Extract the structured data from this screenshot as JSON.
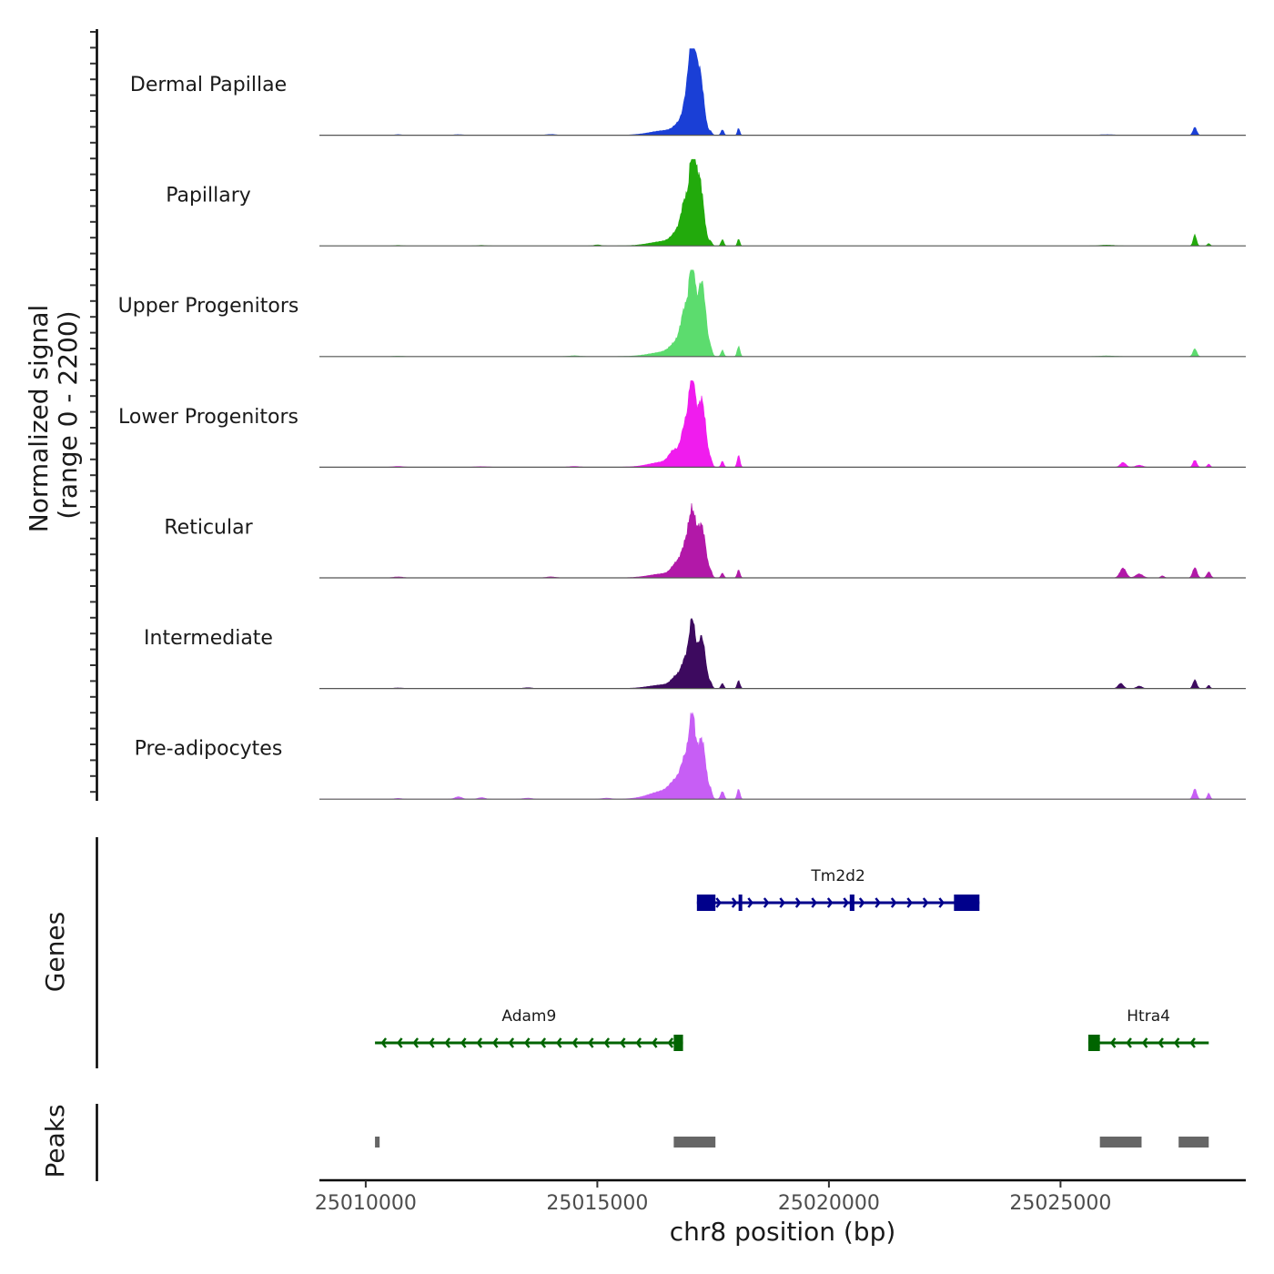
{
  "chart_data": {
    "type": "area",
    "chromosome": "chr8",
    "xlabel": "chr8 position (bp)",
    "xlim": [
      25009000,
      25029000
    ],
    "x_ticks": [
      25010000,
      25015000,
      25020000,
      25025000
    ],
    "x_tick_labels": [
      "25010000",
      "25015000",
      "25020000",
      "25025000"
    ],
    "ylabel_line1": "Normalized signal",
    "ylabel_line2": "(range 0 - 2200)",
    "ylim": [
      0,
      2200
    ],
    "tracks": [
      {
        "name": "Dermal Papillae",
        "color": "#1a3fd6",
        "peaks": [
          [
            25016500,
            120,
            700
          ],
          [
            25016800,
            250,
            250
          ],
          [
            25017050,
            1900,
            120
          ],
          [
            25017200,
            1650,
            180
          ],
          [
            25016950,
            900,
            160
          ],
          [
            25017700,
            140,
            60
          ],
          [
            25018050,
            180,
            50
          ],
          [
            25017450,
            70,
            60
          ],
          [
            25027900,
            200,
            80
          ],
          [
            25010700,
            15,
            150
          ],
          [
            25012000,
            15,
            200
          ],
          [
            25014000,
            20,
            200
          ],
          [
            25026000,
            15,
            300
          ]
        ]
      },
      {
        "name": "Papillary",
        "color": "#22aa0c",
        "peaks": [
          [
            25016500,
            120,
            700
          ],
          [
            25016750,
            300,
            250
          ],
          [
            25017050,
            1900,
            120
          ],
          [
            25017200,
            1700,
            180
          ],
          [
            25016900,
            950,
            160
          ],
          [
            25017700,
            160,
            60
          ],
          [
            25018050,
            180,
            50
          ],
          [
            25017450,
            90,
            60
          ],
          [
            25027900,
            280,
            70
          ],
          [
            25028200,
            60,
            60
          ],
          [
            25010700,
            12,
            150
          ],
          [
            25012500,
            12,
            200
          ],
          [
            25015000,
            25,
            150
          ],
          [
            25026000,
            20,
            300
          ]
        ]
      },
      {
        "name": "Upper Progenitors",
        "color": "#5cdc6e",
        "peaks": [
          [
            25016500,
            120,
            700
          ],
          [
            25016700,
            250,
            250
          ],
          [
            25017050,
            2100,
            120
          ],
          [
            25017250,
            1900,
            180
          ],
          [
            25016900,
            1100,
            180
          ],
          [
            25017700,
            160,
            60
          ],
          [
            25018050,
            260,
            60
          ],
          [
            25017450,
            120,
            60
          ],
          [
            25027900,
            200,
            80
          ],
          [
            25010700,
            10,
            150
          ],
          [
            25014500,
            20,
            200
          ],
          [
            25026000,
            15,
            300
          ]
        ]
      },
      {
        "name": "Lower Progenitors",
        "color": "#f01cee",
        "peaks": [
          [
            25016500,
            140,
            700
          ],
          [
            25016650,
            300,
            200
          ],
          [
            25017050,
            2000,
            130
          ],
          [
            25017250,
            1700,
            180
          ],
          [
            25016900,
            1000,
            180
          ],
          [
            25017700,
            150,
            60
          ],
          [
            25018050,
            300,
            60
          ],
          [
            25017450,
            110,
            60
          ],
          [
            25026350,
            120,
            120
          ],
          [
            25026700,
            50,
            150
          ],
          [
            25027900,
            180,
            80
          ],
          [
            25028200,
            80,
            60
          ],
          [
            25010700,
            20,
            200
          ],
          [
            25012500,
            15,
            250
          ],
          [
            25014500,
            20,
            200
          ]
        ]
      },
      {
        "name": "Reticular",
        "color": "#b218a8",
        "peaks": [
          [
            25016500,
            110,
            700
          ],
          [
            25016700,
            260,
            200
          ],
          [
            25017050,
            1450,
            150
          ],
          [
            25017250,
            1300,
            180
          ],
          [
            25016900,
            700,
            180
          ],
          [
            25017700,
            120,
            60
          ],
          [
            25018050,
            200,
            60
          ],
          [
            25017450,
            100,
            60
          ],
          [
            25026350,
            250,
            130
          ],
          [
            25026700,
            100,
            150
          ],
          [
            25027200,
            50,
            80
          ],
          [
            25027900,
            260,
            90
          ],
          [
            25028200,
            150,
            80
          ],
          [
            25010700,
            25,
            200
          ],
          [
            25014000,
            25,
            200
          ]
        ]
      },
      {
        "name": "Intermediate",
        "color": "#3d0a5f",
        "peaks": [
          [
            25016500,
            100,
            700
          ],
          [
            25016700,
            220,
            200
          ],
          [
            25017050,
            1550,
            130
          ],
          [
            25017250,
            1300,
            170
          ],
          [
            25016900,
            650,
            170
          ],
          [
            25017700,
            130,
            60
          ],
          [
            25018050,
            200,
            60
          ],
          [
            25017450,
            90,
            60
          ],
          [
            25026300,
            130,
            110
          ],
          [
            25026700,
            60,
            120
          ],
          [
            25027900,
            220,
            80
          ],
          [
            25028200,
            80,
            60
          ],
          [
            25010700,
            15,
            200
          ],
          [
            25013500,
            20,
            200
          ]
        ]
      },
      {
        "name": "Pre-adipocytes",
        "color": "#c75ef5",
        "peaks": [
          [
            25016500,
            220,
            700
          ],
          [
            25016700,
            300,
            250
          ],
          [
            25017050,
            1850,
            130
          ],
          [
            25017250,
            1500,
            180
          ],
          [
            25016900,
            850,
            180
          ],
          [
            25017700,
            200,
            70
          ],
          [
            25018050,
            260,
            60
          ],
          [
            25017450,
            150,
            60
          ],
          [
            25012000,
            60,
            150
          ],
          [
            25012500,
            40,
            150
          ],
          [
            25013500,
            25,
            200
          ],
          [
            25015200,
            25,
            200
          ],
          [
            25027900,
            260,
            80
          ],
          [
            25028200,
            150,
            60
          ],
          [
            25010700,
            20,
            150
          ]
        ]
      }
    ],
    "genes_label": "Genes",
    "genes": [
      {
        "name": "Tm2d2",
        "start": 25017150,
        "end": 25023250,
        "strand": "+",
        "color": "#00008b",
        "row": 0,
        "exons": [
          [
            25017150,
            25017550
          ],
          [
            25018050,
            25018120
          ],
          [
            25020450,
            25020550
          ],
          [
            25022700,
            25023250
          ]
        ]
      },
      {
        "name": "Adam9",
        "start": 25010200,
        "end": 25016850,
        "strand": "-",
        "color": "#006400",
        "row": 1,
        "exons": [
          [
            25016650,
            25016850
          ]
        ]
      },
      {
        "name": "Htra4",
        "start": 25025600,
        "end": 25028200,
        "strand": "-",
        "color": "#006400",
        "row": 1,
        "exons": [
          [
            25025600,
            25025850
          ]
        ]
      }
    ],
    "peaks_label": "Peaks",
    "peak_regions": [
      [
        25010200,
        25010300
      ],
      [
        25016650,
        25017550
      ],
      [
        25025850,
        25026750
      ],
      [
        25027550,
        25028200
      ]
    ],
    "peak_color": "#666666"
  }
}
